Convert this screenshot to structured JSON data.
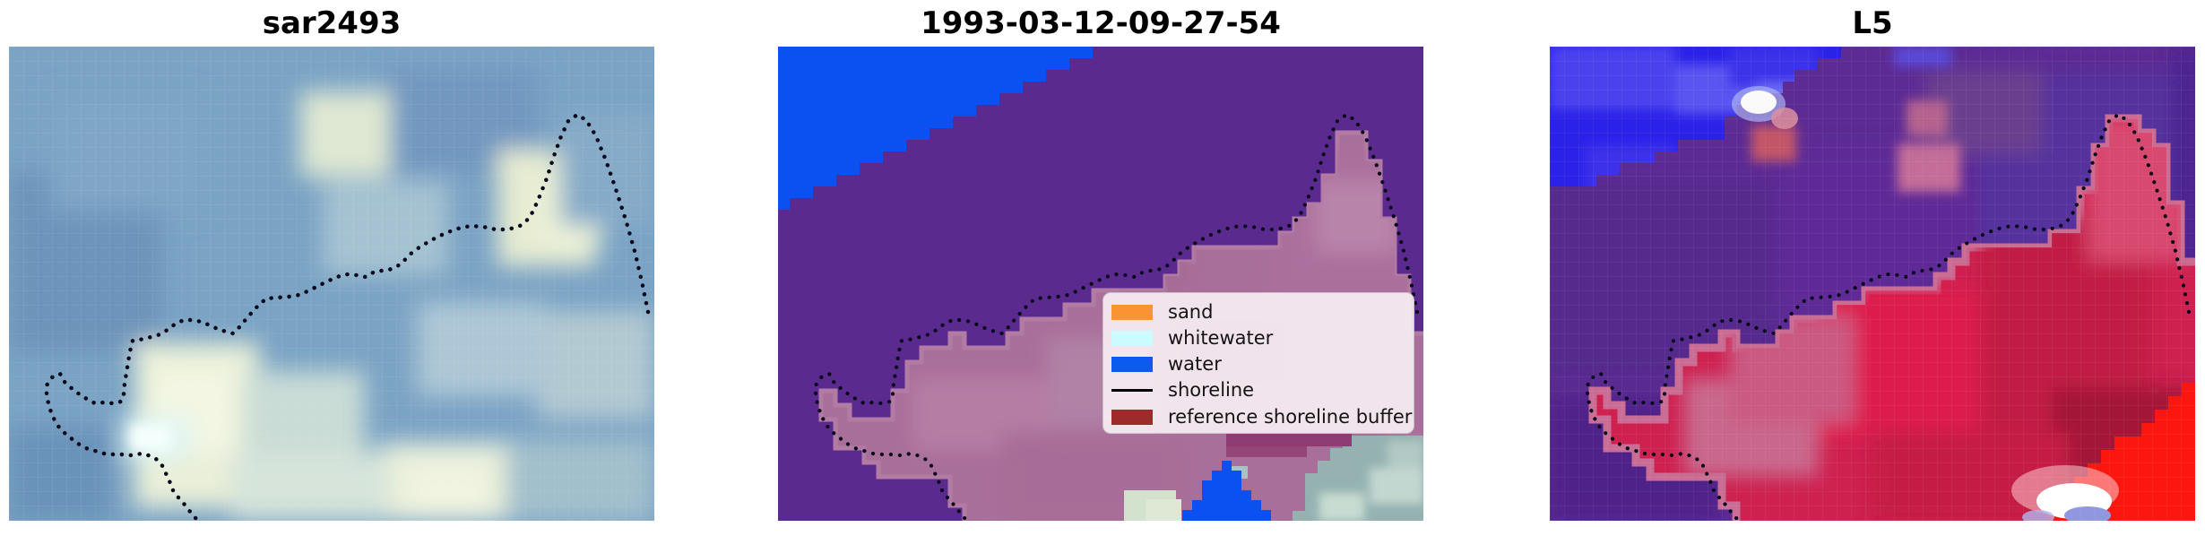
{
  "figure": {
    "kind": "matplotlib-style figure, 1x3 image subplots",
    "background": "#ffffff"
  },
  "panels": [
    {
      "id": "sar",
      "title": "sar2493",
      "description": "SAR backscatter image in blue-grey tones with bright beach patches and black dotted detected shoreline"
    },
    {
      "id": "classified",
      "title": "1993-03-12-09-27-54",
      "description": "classified scene: water (blue), purple background, mauve reference-shoreline buffer, black dotted shoreline, legend box"
    },
    {
      "id": "l5",
      "title": "L5",
      "description": "Landsat 5 false-colour scene: blue water top-left, purple land, crimson reference-shoreline buffer, bright red and white patches bottom-right, black dotted shoreline"
    }
  ],
  "legend": {
    "location": "centre-right of middle panel",
    "items": [
      {
        "label": "sand",
        "swatch": "patch",
        "color": "#f99433"
      },
      {
        "label": "whitewater",
        "swatch": "patch",
        "color": "#ccfbff"
      },
      {
        "label": "water",
        "swatch": "patch",
        "color": "#0b5bf0"
      },
      {
        "label": "shoreline",
        "swatch": "line",
        "color": "#000000"
      },
      {
        "label": "reference shoreline buffer",
        "swatch": "patch",
        "color": "#9e2b2b"
      }
    ]
  },
  "colors": {
    "classified_background": "#5b2a8f",
    "classified_water": "#0b50f0",
    "classified_buffer_overlay": "#a96f9b",
    "classified_corner_whitewater": "#95b2b1",
    "l5_background": "#5c2b94",
    "l5_water": "#2b22e8",
    "l5_buffer_overlay": "#ce2150",
    "l5_bright_red_corner": "#fb1710",
    "sar_base": "#7aa3c4",
    "shoreline_dots": "#08081a"
  },
  "chart_data": {
    "type": "image",
    "layout": "1 row x 3 columns of raster subplots, shared dotted shoreline overlay",
    "subplots": [
      {
        "title": "sar2493",
        "content": "SAR image, blue-grey with pale sand/whitewater patches, dotted shoreline from upper-right peak down to lower-left hook"
      },
      {
        "title": "1993-03-12-09-27-54",
        "content": "image classification: water class top-left and bottom patch, purple unclassified background, semi-transparent reference shoreline buffer (mauve), whitewater-grey corner, dotted shoreline, legend"
      },
      {
        "title": "L5",
        "content": "Landsat 5 composite: saturated blue water top-left with white cloud spot, purple land, crimson buffer region, bright red + white + lavender bottom-right corner, dotted shoreline"
      }
    ],
    "legend_entries": [
      "sand",
      "whitewater",
      "water",
      "shoreline",
      "reference shoreline buffer"
    ],
    "shoreline_style": "black dotted line present in all three subplots"
  }
}
